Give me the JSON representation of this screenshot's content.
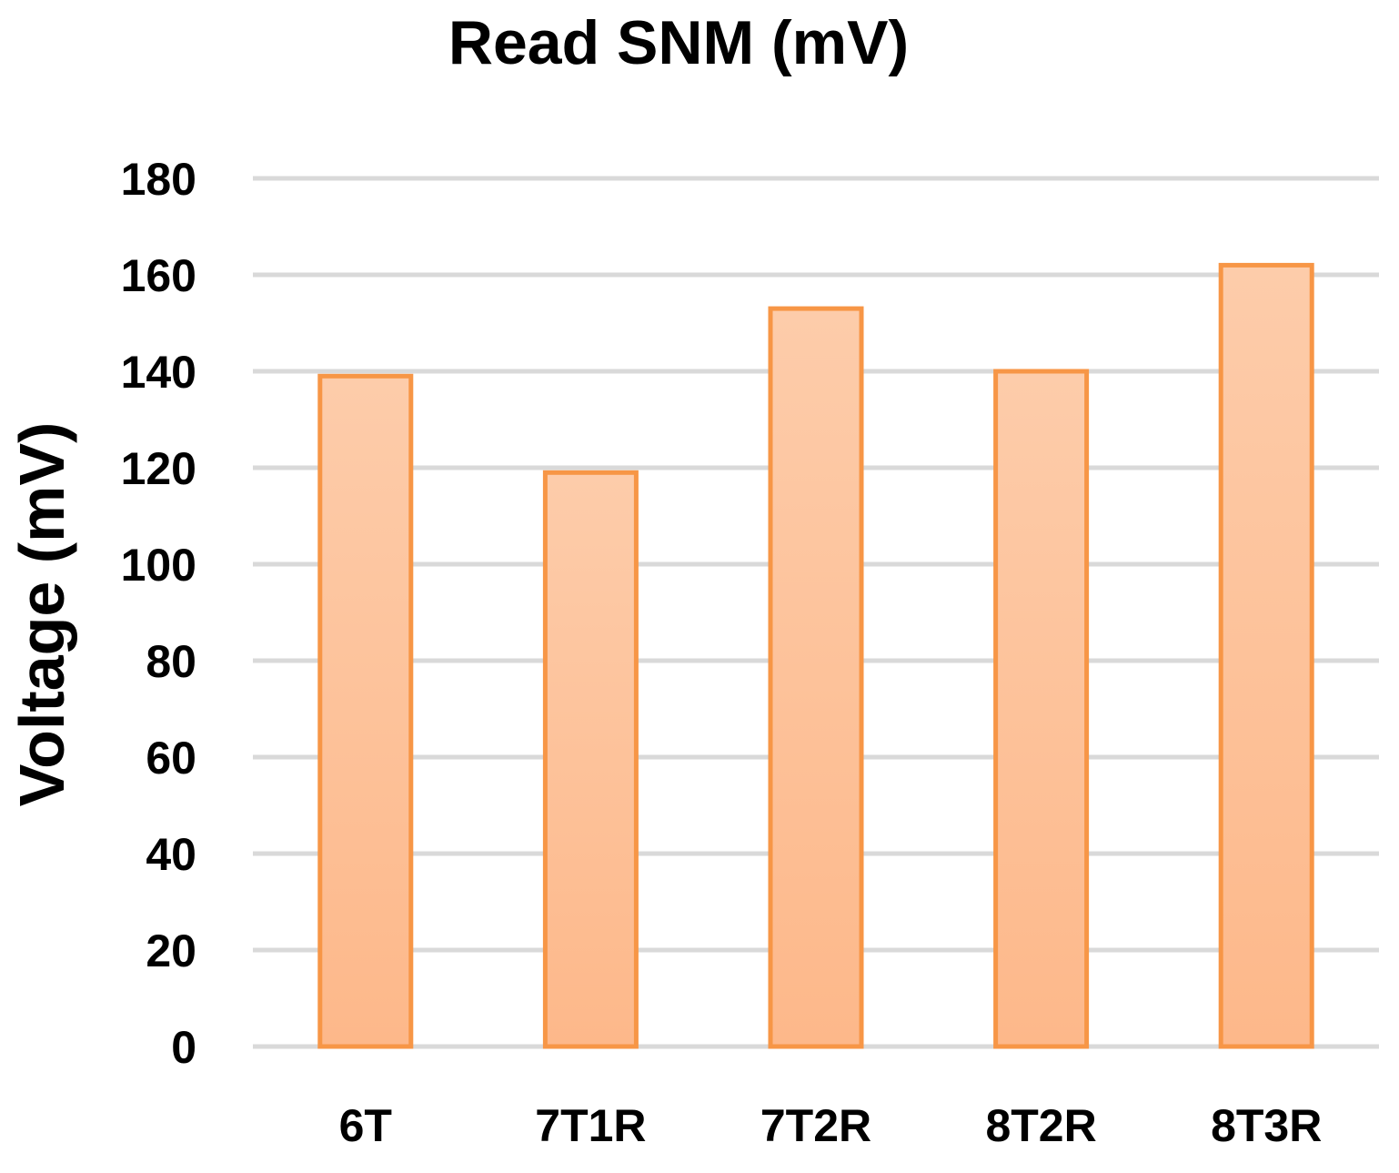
{
  "chart_data": {
    "type": "bar",
    "title": "Read SNM (mV)",
    "ylabel": "Voltage (mV)",
    "xlabel": "",
    "categories": [
      "6T",
      "7T1R",
      "7T2R",
      "8T2R",
      "8T3R"
    ],
    "values": [
      139,
      119,
      153,
      140,
      162
    ],
    "ylim": [
      0,
      180
    ],
    "yticks": [
      "0",
      "20",
      "40",
      "60",
      "80",
      "100",
      "120",
      "140",
      "160",
      "180"
    ],
    "grid": true,
    "legend": "none",
    "colors": {
      "bar_fill_top": "#fdccaa",
      "bar_fill_bottom": "#fdb88a",
      "bar_edge": "#f79646",
      "gridline": "#d9d9d9",
      "text": "#000000"
    }
  }
}
